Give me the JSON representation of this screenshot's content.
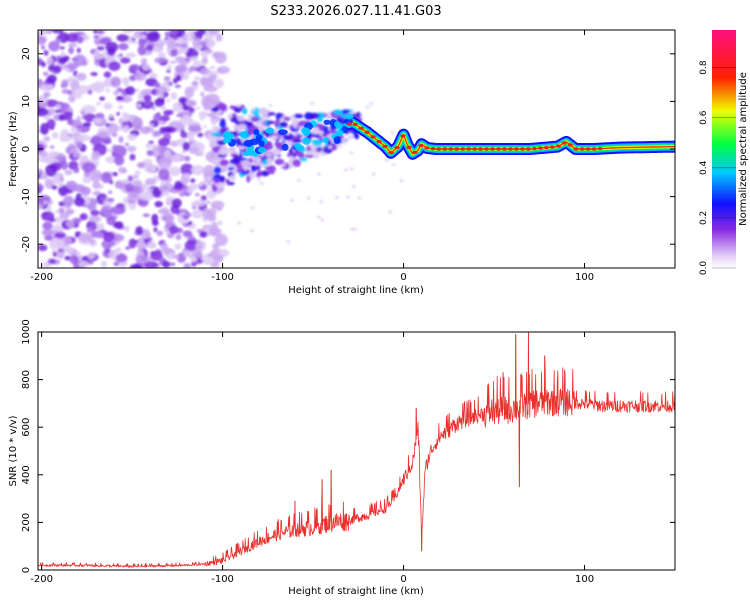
{
  "title": "S233.2026.027.11.41.G03",
  "colors": {
    "signal": "#e8302c",
    "axis": "#000000",
    "noise_light": "#d8c4f4",
    "noise_dark": "#6b1fd6"
  },
  "chart_data": [
    {
      "type": "heatmap",
      "title": "S233.2026.027.11.41.G03",
      "xlabel": "Height of straight line (km)",
      "ylabel": "Frequency (Hz)",
      "xlim": [
        -202,
        150
      ],
      "ylim": [
        -25,
        25
      ],
      "xticks": [
        -200,
        -100,
        0,
        100
      ],
      "xtick_labels": [
        "-200",
        "-100",
        "0",
        "100"
      ],
      "yticks": [
        -20,
        -10,
        0,
        10,
        20
      ],
      "ytick_labels": [
        "-20",
        "-10",
        "0",
        "10",
        "20"
      ],
      "colorbar": {
        "label": "Normalized spectral amplitude",
        "range": [
          0.0,
          0.95
        ],
        "ticks": [
          0.0,
          0.2,
          0.4,
          0.6,
          0.8
        ],
        "tick_labels": [
          "0.0",
          "0.2",
          "0.4",
          "0.6",
          "0.8"
        ],
        "colormap": "rainbow (white-violet to magenta)"
      },
      "regions": [
        {
          "name": "broadband noise",
          "x_range": [
            -202,
            -105
          ],
          "amplitude": [
            0.0,
            0.15
          ]
        },
        {
          "name": "scattered signal",
          "x_range": [
            -105,
            -30
          ],
          "amplitude": [
            0.1,
            0.35
          ]
        },
        {
          "name": "coherent narrow band",
          "x_range": [
            -30,
            150
          ],
          "amplitude": [
            0.3,
            0.9
          ]
        }
      ],
      "ridge": {
        "x": [
          -105,
          -90,
          -70,
          -55,
          -40,
          -32,
          -28,
          -24,
          -20,
          -15,
          -10,
          -7,
          -3,
          0,
          2,
          5,
          8,
          10,
          13,
          18,
          30,
          50,
          70,
          85,
          90,
          95,
          105,
          120,
          150
        ],
        "y": [
          0.5,
          1.0,
          1.5,
          2.5,
          3.5,
          5.0,
          5.5,
          4.5,
          3.5,
          2.0,
          0.5,
          -0.8,
          0.5,
          3.0,
          1.0,
          -1.0,
          -0.3,
          1.0,
          0.2,
          0.0,
          0.0,
          0.0,
          0.0,
          0.5,
          1.5,
          0.0,
          0.0,
          0.3,
          0.5
        ]
      }
    },
    {
      "type": "line",
      "xlabel": "Height of straight line (km)",
      "ylabel": "SNR (10 * v/v)",
      "xlim": [
        -202,
        150
      ],
      "ylim": [
        0,
        1000
      ],
      "xticks": [
        -200,
        -100,
        0,
        100
      ],
      "xtick_labels": [
        "-200",
        "-100",
        "0",
        "100"
      ],
      "yticks": [
        0,
        200,
        400,
        600,
        800,
        1000
      ],
      "ytick_labels": [
        "0",
        "200",
        "400",
        "600",
        "800",
        "1000"
      ],
      "series": [
        {
          "name": "SNR",
          "x": [
            -202,
            -180,
            -150,
            -120,
            -110,
            -100,
            -90,
            -80,
            -70,
            -60,
            -50,
            -40,
            -30,
            -20,
            -10,
            -5,
            0,
            5,
            8,
            10,
            12,
            15,
            20,
            25,
            30,
            40,
            50,
            60,
            70,
            80,
            90,
            100,
            110,
            120,
            130,
            150
          ],
          "values": [
            20,
            20,
            15,
            20,
            25,
            40,
            80,
            120,
            150,
            170,
            180,
            200,
            210,
            230,
            260,
            300,
            380,
            450,
            600,
            150,
            420,
            500,
            560,
            590,
            620,
            650,
            670,
            680,
            700,
            710,
            710,
            700,
            690,
            690,
            690,
            690
          ],
          "spikes": [
            {
              "x": -60,
              "value": 290
            },
            {
              "x": -45,
              "value": 380
            },
            {
              "x": -40,
              "value": 420
            },
            {
              "x": 7,
              "value": 680
            },
            {
              "x": 10,
              "value": 80
            },
            {
              "x": 55,
              "value": 830
            },
            {
              "x": 62,
              "value": 990
            },
            {
              "x": 64,
              "value": 350
            },
            {
              "x": 69,
              "value": 1000
            },
            {
              "x": 78,
              "value": 900
            },
            {
              "x": 85,
              "value": 800
            }
          ]
        }
      ]
    }
  ]
}
